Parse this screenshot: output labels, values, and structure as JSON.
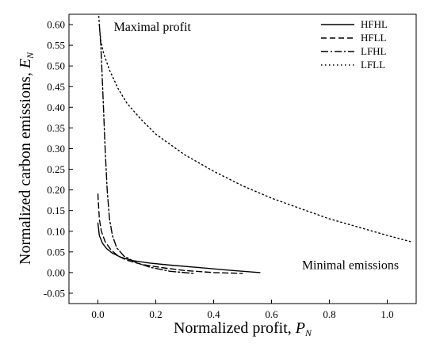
{
  "chart_data": {
    "type": "line",
    "xlabel": "Normalized profit, ",
    "xlabel_symbol": "P",
    "xlabel_sub": "N",
    "ylabel": "Normalized carbon emissions, ",
    "ylabel_symbol": "E",
    "ylabel_sub": "N",
    "xlim": [
      -0.1,
      1.1
    ],
    "ylim": [
      -0.075,
      0.625
    ],
    "x_ticks": [
      0.0,
      0.2,
      0.4,
      0.6,
      0.8,
      1.0
    ],
    "x_tick_labels": [
      "0.0",
      "0.2",
      "0.4",
      "0.6",
      "0.8",
      "1.0"
    ],
    "y_ticks": [
      -0.05,
      0.0,
      0.05,
      0.1,
      0.15,
      0.2,
      0.25,
      0.3,
      0.35,
      0.4,
      0.45,
      0.5,
      0.55,
      0.6
    ],
    "y_tick_labels": [
      "-0.05",
      "0.00",
      "0.05",
      "0.10",
      "0.15",
      "0.20",
      "0.25",
      "0.30",
      "0.35",
      "0.40",
      "0.45",
      "0.50",
      "0.55",
      "0.60"
    ],
    "grid": false,
    "legend_position": "top-right",
    "annotations": [
      {
        "text": "Maximal profit",
        "x": 0.055,
        "y": 0.585
      },
      {
        "text": "Minimal emissions",
        "x": 0.705,
        "y": 0.008
      }
    ],
    "series": [
      {
        "name": "HFHL",
        "dash": "solid",
        "x": [
          0.0,
          0.005,
          0.015,
          0.03,
          0.05,
          0.08,
          0.12,
          0.18,
          0.25,
          0.35,
          0.45,
          0.56
        ],
        "y": [
          0.12,
          0.09,
          0.072,
          0.058,
          0.047,
          0.037,
          0.029,
          0.023,
          0.018,
          0.012,
          0.006,
          0.0
        ]
      },
      {
        "name": "HFLL",
        "dash": "dashed",
        "x": [
          0.0,
          0.005,
          0.012,
          0.025,
          0.045,
          0.07,
          0.1,
          0.15,
          0.22,
          0.3,
          0.4,
          0.5
        ],
        "y": [
          0.19,
          0.13,
          0.1,
          0.075,
          0.055,
          0.04,
          0.03,
          0.02,
          0.012,
          0.005,
          0.0,
          -0.002
        ]
      },
      {
        "name": "LFHL",
        "dash": "dashdot",
        "x": [
          0.005,
          0.01,
          0.018,
          0.025,
          0.032,
          0.04,
          0.05,
          0.065,
          0.09,
          0.13,
          0.18,
          0.25,
          0.33
        ],
        "y": [
          0.6,
          0.55,
          0.42,
          0.3,
          0.2,
          0.13,
          0.09,
          0.06,
          0.04,
          0.025,
          0.013,
          0.003,
          -0.002
        ]
      },
      {
        "name": "LFLL",
        "dash": "dotted",
        "x": [
          0.003,
          0.006,
          0.01,
          0.02,
          0.04,
          0.07,
          0.1,
          0.15,
          0.2,
          0.3,
          0.4,
          0.5,
          0.6,
          0.7,
          0.8,
          0.9,
          1.0,
          1.08
        ],
        "y": [
          0.62,
          0.59,
          0.56,
          0.53,
          0.49,
          0.445,
          0.41,
          0.37,
          0.335,
          0.285,
          0.245,
          0.21,
          0.18,
          0.155,
          0.13,
          0.11,
          0.09,
          0.075
        ]
      }
    ]
  }
}
